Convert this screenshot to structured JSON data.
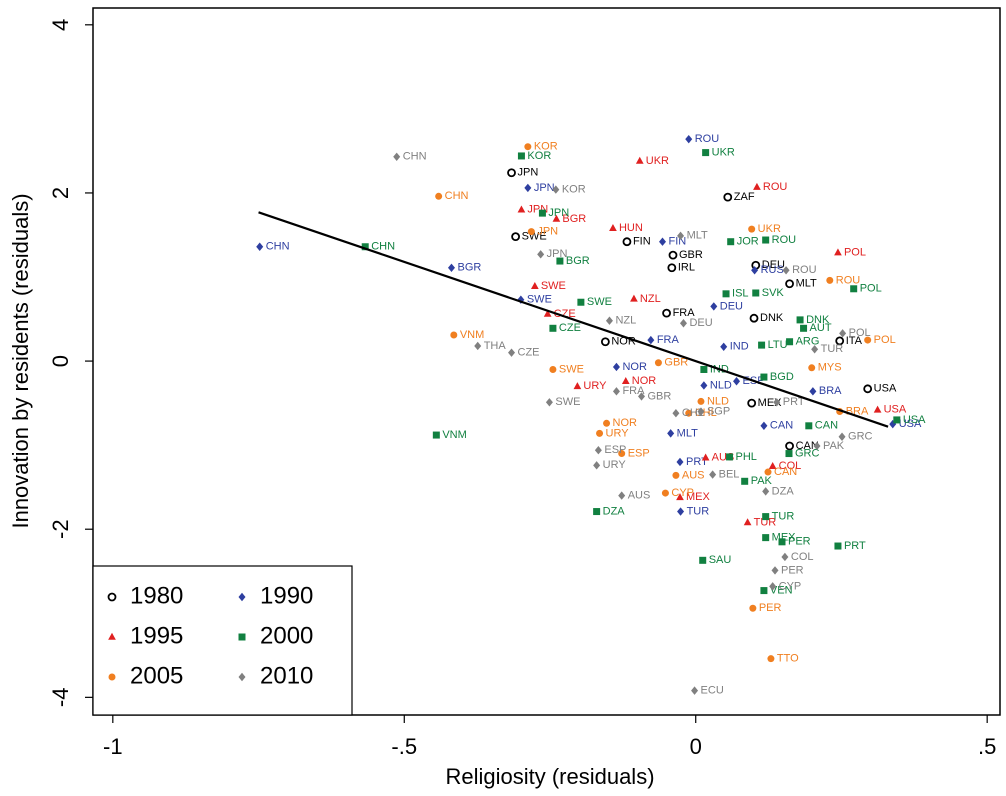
{
  "chart_data": {
    "type": "scatter",
    "xlabel": "Religiosity (residuals)",
    "ylabel": "Innovation by residents (residuals)",
    "xlim": [
      -1.034,
      0.522
    ],
    "ylim": [
      -4.21,
      4.2
    ],
    "xticks": [
      -1,
      {
        "value": -0.5,
        "label": "-.5"
      },
      0,
      {
        "value": 0.5,
        "label": ".5"
      }
    ],
    "yticks": [
      -4,
      -2,
      0,
      2,
      4
    ],
    "legend": "bottom-left",
    "fit_line": {
      "x": [
        -0.75,
        0.33
      ],
      "y": [
        1.77,
        -0.78
      ],
      "color": "#000000"
    },
    "series": [
      {
        "name": "1980",
        "color": "#000000",
        "marker": "circle-open",
        "labels": [
          "JPN",
          "ZAF",
          "SWE",
          "FIN",
          "GBR",
          "DEU",
          "IRL",
          "FRA",
          "NOR",
          "DNK",
          "MLT",
          "CAN",
          "USA",
          "ITA",
          "MEX"
        ],
        "x": [
          -0.316,
          0.055,
          -0.309,
          -0.118,
          -0.039,
          0.103,
          -0.041,
          -0.05,
          -0.155,
          0.1,
          0.161,
          0.161,
          0.295,
          0.247,
          0.096
        ],
        "y": [
          2.24,
          1.95,
          1.48,
          1.42,
          1.26,
          1.14,
          1.11,
          0.57,
          0.23,
          0.51,
          0.92,
          -1.01,
          -0.33,
          0.24,
          -0.5
        ]
      },
      {
        "name": "1990",
        "color": "#2e3fa0",
        "marker": "diamond",
        "labels": [
          "ROU",
          "JPN",
          "CHN",
          "BGR",
          "SWE",
          "FIN",
          "NOR",
          "FRA",
          "DEU",
          "NLD",
          "MLT",
          "PRT",
          "TUR",
          "USA",
          "BRA",
          "CAN",
          "ESP",
          "IND",
          "RUS"
        ],
        "x": [
          -0.012,
          -0.288,
          -0.748,
          -0.419,
          -0.3,
          -0.057,
          -0.136,
          -0.077,
          0.031,
          0.014,
          -0.043,
          -0.027,
          -0.026,
          0.338,
          0.201,
          0.117,
          0.07,
          0.048,
          0.101
        ],
        "y": [
          2.64,
          2.06,
          1.36,
          1.11,
          0.73,
          1.42,
          -0.07,
          0.25,
          0.65,
          -0.29,
          -0.86,
          -1.2,
          -1.79,
          -0.75,
          -0.36,
          -0.77,
          -0.24,
          0.17,
          1.08
        ]
      },
      {
        "name": "1995",
        "color": "#e02020",
        "marker": "triangle",
        "labels": [
          "UKR",
          "ROU",
          "JPN",
          "BGR",
          "HUN",
          "POL",
          "SWE",
          "NZL",
          "CZE",
          "URY",
          "NOR",
          "COL",
          "MEX",
          "TUR",
          "USA",
          "AUS"
        ],
        "x": [
          -0.096,
          0.105,
          -0.299,
          -0.239,
          -0.142,
          0.244,
          -0.276,
          -0.106,
          -0.254,
          -0.203,
          -0.12,
          0.132,
          -0.027,
          0.089,
          0.312,
          0.017
        ],
        "y": [
          2.38,
          2.07,
          1.8,
          1.69,
          1.58,
          1.29,
          0.89,
          0.74,
          0.56,
          -0.3,
          -0.24,
          -1.25,
          -1.62,
          -1.92,
          -0.58,
          -1.15
        ]
      },
      {
        "name": "2000",
        "color": "#118040",
        "marker": "square",
        "labels": [
          "KOR",
          "UKR",
          "JPN",
          "CHN",
          "BGR",
          "ROU",
          "JOR",
          "SWE",
          "CZE",
          "POL",
          "SVK",
          "ISL",
          "DNK",
          "AUT",
          "ARG",
          "VNM",
          "IND",
          "BGD",
          "DZA",
          "SAU",
          "PAK",
          "PRT",
          "PER",
          "MEX",
          "VEN",
          "GRC",
          "TUR",
          "PHL",
          "CAN",
          "USA",
          "LTU"
        ],
        "x": [
          -0.299,
          0.017,
          -0.263,
          -0.567,
          -0.233,
          0.12,
          0.06,
          -0.197,
          -0.245,
          0.271,
          0.103,
          0.052,
          0.179,
          0.185,
          0.161,
          -0.445,
          0.014,
          0.117,
          -0.17,
          0.012,
          0.084,
          0.244,
          0.148,
          0.12,
          0.117,
          0.16,
          0.12,
          0.058,
          0.194,
          0.345,
          0.113
        ],
        "y": [
          2.44,
          2.48,
          1.76,
          1.36,
          1.19,
          1.44,
          1.42,
          0.7,
          0.39,
          0.86,
          0.81,
          0.8,
          0.49,
          0.39,
          0.23,
          -0.88,
          -0.1,
          -0.19,
          -1.79,
          -2.37,
          -1.43,
          -2.2,
          -2.15,
          -2.1,
          -2.73,
          -1.1,
          -1.85,
          -1.14,
          -0.77,
          -0.7,
          0.19
        ]
      },
      {
        "name": "2005",
        "color": "#f07f20",
        "marker": "circle",
        "labels": [
          "KOR",
          "CHN",
          "JPN",
          "UKR",
          "ROU",
          "VNM",
          "SWE",
          "NOR",
          "ESP",
          "AUS",
          "CYP",
          "PER",
          "TTO",
          "CAN",
          "GBR",
          "POL",
          "NLD",
          "MYS",
          "URY",
          "CHL",
          "BRA"
        ],
        "x": [
          -0.288,
          -0.441,
          -0.282,
          0.096,
          0.23,
          -0.415,
          -0.245,
          -0.153,
          -0.127,
          -0.034,
          -0.052,
          0.098,
          0.129,
          0.124,
          -0.064,
          0.295,
          0.009,
          0.199,
          -0.165,
          -0.012,
          0.247
        ],
        "y": [
          2.55,
          1.96,
          1.54,
          1.57,
          0.96,
          0.31,
          -0.1,
          -0.74,
          -1.1,
          -1.36,
          -1.57,
          -2.94,
          -3.54,
          -1.32,
          -0.02,
          0.25,
          -0.48,
          -0.08,
          -0.86,
          -0.62,
          -0.6
        ]
      },
      {
        "name": "2010",
        "color": "#808080",
        "marker": "diamond",
        "labels": [
          "CHN",
          "KOR",
          "JPN",
          "MLT",
          "ROU",
          "CZE",
          "THA",
          "SWE",
          "GBR",
          "NZL",
          "FRA",
          "ESP",
          "URY",
          "AUS",
          "BEL",
          "DZA",
          "COL",
          "PER",
          "CYP",
          "ECU",
          "POL",
          "TUR",
          "GRC",
          "PAK",
          "CHL",
          "SGP",
          "PRT",
          "DEU"
        ],
        "x": [
          -0.513,
          -0.24,
          -0.266,
          -0.026,
          0.155,
          -0.316,
          -0.374,
          -0.251,
          -0.093,
          -0.148,
          -0.136,
          -0.167,
          -0.17,
          -0.127,
          0.029,
          0.12,
          0.153,
          0.136,
          0.132,
          -0.002,
          0.252,
          0.204,
          0.251,
          0.208,
          -0.034,
          0.009,
          0.139,
          -0.021
        ],
        "y": [
          2.43,
          2.04,
          1.27,
          1.49,
          1.08,
          0.1,
          0.18,
          -0.49,
          -0.42,
          0.48,
          -0.36,
          -1.06,
          -1.24,
          -1.6,
          -1.35,
          -1.55,
          -2.33,
          -2.49,
          -2.68,
          -3.92,
          0.33,
          0.14,
          -0.9,
          -1.01,
          -0.62,
          -0.6,
          -0.49,
          0.45
        ]
      }
    ]
  }
}
